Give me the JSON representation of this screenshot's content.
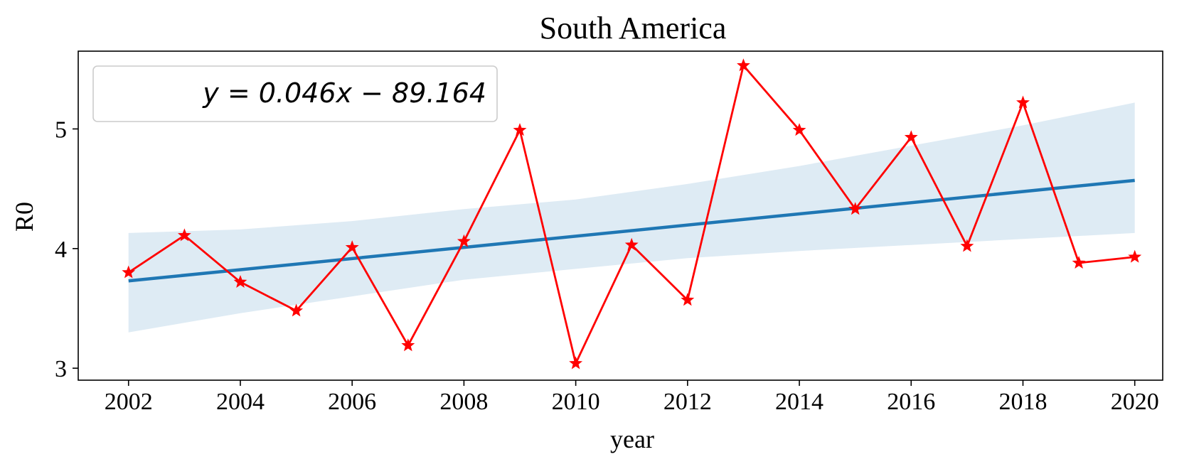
{
  "chart_data": {
    "type": "line",
    "title": "South America",
    "xlabel": "year",
    "ylabel": "R0",
    "xlim": [
      2001.1,
      2020.5
    ],
    "ylim": [
      2.9,
      5.65
    ],
    "xticks": [
      2002,
      2004,
      2006,
      2008,
      2010,
      2012,
      2014,
      2016,
      2018,
      2020
    ],
    "yticks": [
      3,
      4,
      5
    ],
    "grid": false,
    "legend": {
      "position": "upper-left",
      "entries": [
        "y = 0.046x − 89.164"
      ]
    },
    "regression": {
      "slope": 0.046,
      "intercept": -89.164,
      "x_range": [
        2002,
        2020
      ],
      "fit_start": 3.73,
      "fit_end": 4.57,
      "ci_band": {
        "x": [
          2002,
          2004,
          2006,
          2008,
          2010,
          2012,
          2014,
          2016,
          2018,
          2020
        ],
        "lower": [
          3.3,
          3.46,
          3.6,
          3.74,
          3.83,
          3.92,
          3.98,
          4.03,
          4.08,
          4.13
        ],
        "upper": [
          4.13,
          4.16,
          4.23,
          4.33,
          4.41,
          4.54,
          4.69,
          4.86,
          5.03,
          5.22
        ]
      },
      "color": "#1f77b4",
      "band_color": "#1f77b4"
    },
    "series": [
      {
        "name": "R0",
        "color": "#ff0000",
        "marker": "star",
        "x": [
          2002,
          2003,
          2004,
          2005,
          2006,
          2007,
          2008,
          2009,
          2010,
          2011,
          2012,
          2013,
          2014,
          2015,
          2016,
          2017,
          2018,
          2019,
          2020
        ],
        "y": [
          3.8,
          4.11,
          3.72,
          3.48,
          4.01,
          3.19,
          4.06,
          4.99,
          3.04,
          4.03,
          3.57,
          5.53,
          4.99,
          4.33,
          4.93,
          4.02,
          5.22,
          3.88,
          3.93
        ]
      }
    ]
  }
}
